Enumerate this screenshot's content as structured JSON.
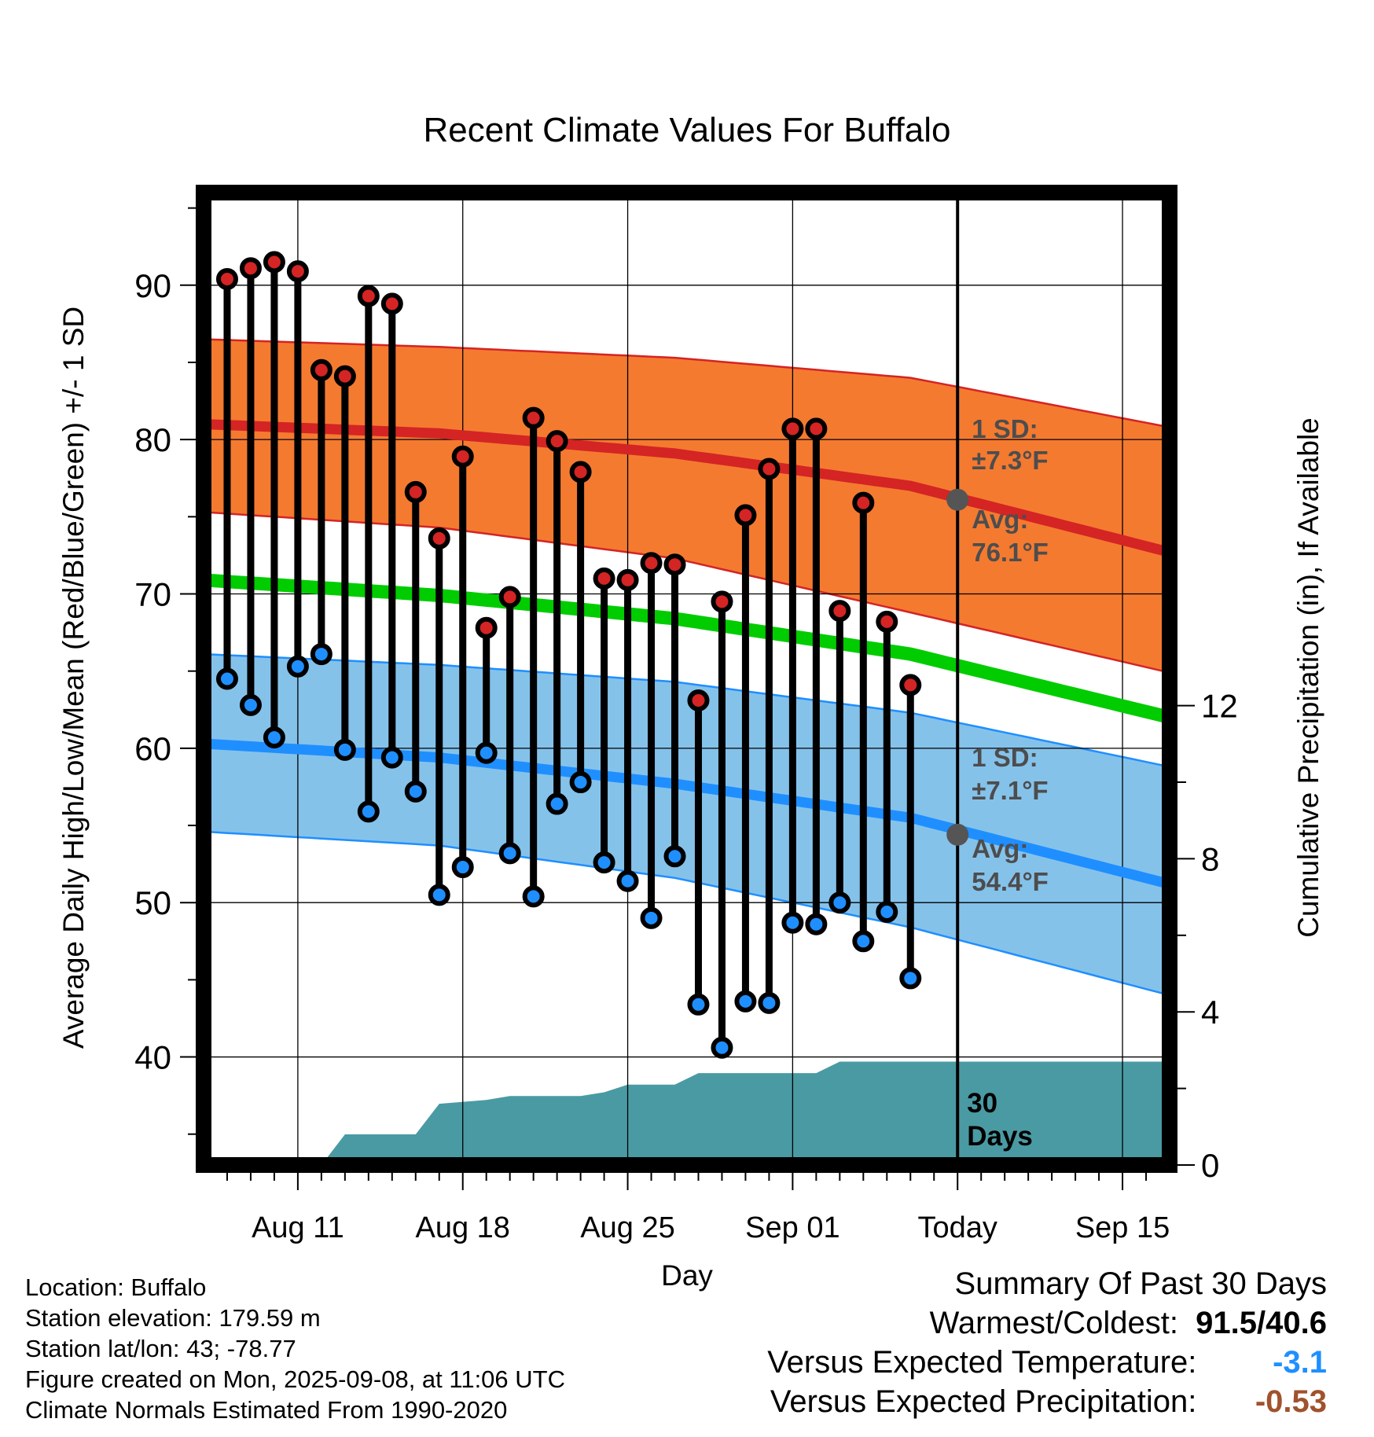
{
  "chart_data": {
    "type": "line",
    "title": "Recent Climate Values For Buffalo",
    "xlabel": "Day",
    "ylabel": "Average Daily High/Low/Mean (Red/Blue/Green) +/- 1 SD",
    "y2label": "Cumulative Precipitation (in), If Available",
    "x_tick_labels": [
      "Aug 11",
      "Aug 18",
      "Aug 25",
      "Sep 01",
      "Today",
      "Sep 15"
    ],
    "y_ticks": [
      40,
      50,
      60,
      70,
      80,
      90
    ],
    "y2_ticks": [
      0,
      4,
      8,
      12
    ],
    "ylim": [
      33,
      96
    ],
    "y2lim": [
      0,
      25.4
    ],
    "xlim": [
      "2025-08-07",
      "2025-09-17"
    ],
    "today": "2025-09-08",
    "grid": true,
    "normals": {
      "x": [
        "2025-08-07",
        "2025-08-17",
        "2025-08-27",
        "2025-09-06",
        "2025-09-17"
      ],
      "high_avg": [
        81.0,
        80.4,
        79.1,
        77.0,
        72.7
      ],
      "high_upper": [
        86.5,
        86.0,
        85.3,
        84.0,
        80.8
      ],
      "high_lower": [
        75.3,
        74.3,
        72.3,
        68.8,
        64.9
      ],
      "low_avg": [
        60.3,
        59.4,
        57.7,
        55.5,
        51.2
      ],
      "low_upper": [
        66.1,
        65.4,
        64.3,
        62.3,
        58.8
      ],
      "low_lower": [
        54.6,
        53.7,
        51.6,
        48.4,
        44.0
      ],
      "mean_avg": [
        70.9,
        69.9,
        68.4,
        66.1,
        62.0
      ]
    },
    "observed": {
      "dates": [
        "2025-08-08",
        "2025-08-09",
        "2025-08-10",
        "2025-08-11",
        "2025-08-12",
        "2025-08-13",
        "2025-08-14",
        "2025-08-15",
        "2025-08-16",
        "2025-08-17",
        "2025-08-18",
        "2025-08-19",
        "2025-08-20",
        "2025-08-21",
        "2025-08-22",
        "2025-08-23",
        "2025-08-24",
        "2025-08-25",
        "2025-08-26",
        "2025-08-27",
        "2025-08-28",
        "2025-08-29",
        "2025-08-30",
        "2025-08-31",
        "2025-09-01",
        "2025-09-02",
        "2025-09-03",
        "2025-09-04",
        "2025-09-05",
        "2025-09-06",
        "2025-09-07"
      ],
      "high": [
        90.4,
        91.1,
        91.5,
        90.9,
        84.5,
        84.1,
        89.3,
        88.8,
        76.6,
        73.6,
        78.9,
        67.8,
        69.8,
        81.4,
        79.9,
        77.9,
        71.0,
        70.9,
        72.0,
        71.9,
        63.1,
        69.5,
        75.1,
        78.1,
        80.7,
        80.7,
        68.9,
        75.9,
        68.2,
        64.1,
        null
      ],
      "low": [
        64.5,
        62.8,
        60.7,
        65.3,
        66.1,
        59.9,
        55.9,
        59.4,
        57.2,
        50.5,
        52.3,
        59.7,
        53.2,
        50.4,
        56.4,
        57.8,
        52.6,
        51.4,
        49.0,
        53.0,
        43.4,
        40.6,
        43.6,
        43.5,
        48.7,
        48.6,
        50.0,
        47.5,
        49.4,
        45.1,
        null
      ]
    },
    "precipitation": {
      "dates": [
        "2025-08-12",
        "2025-08-13",
        "2025-08-15",
        "2025-08-16",
        "2025-08-17",
        "2025-08-19",
        "2025-08-20",
        "2025-08-23",
        "2025-08-24",
        "2025-08-25",
        "2025-08-27",
        "2025-08-28",
        "2025-09-02",
        "2025-09-03",
        "2025-09-06",
        "2025-09-17"
      ],
      "cumulative": [
        0.0,
        0.8,
        0.8,
        0.8,
        1.6,
        1.7,
        1.8,
        1.8,
        1.9,
        2.1,
        2.1,
        2.4,
        2.4,
        2.7,
        2.7,
        2.7
      ]
    },
    "annotations": {
      "high_sd": "1 SD:",
      "high_sd_val": "±7.3°F",
      "high_avg_label": "Avg:",
      "high_avg_val": "76.1°F",
      "high_today": 76.1,
      "low_sd": "1 SD:",
      "low_sd_val": "±7.1°F",
      "low_avg_label": "Avg:",
      "low_avg_val": "54.4°F",
      "low_today": 54.4,
      "days_line1": "30",
      "days_line2": "Days"
    },
    "colors": {
      "high_band": "#f47a30",
      "high_line": "#d42424",
      "low_band": "#85c2ea",
      "low_line": "#1f8fff",
      "mean_line": "#00cc00",
      "precip": "#4a9aa3",
      "today_marker": "#555555",
      "annotation_text": "#4d4d4d"
    }
  },
  "footer": {
    "location": "Location: Buffalo",
    "elevation": "Station elevation: 179.59 m",
    "latlon": "Station lat/lon: 43; -78.77",
    "created": "Figure created on Mon, 2025-09-08, at 11:06 UTC",
    "normals": "Climate Normals Estimated From 1990-2020"
  },
  "summary": {
    "heading": "Summary Of Past 30 Days",
    "warm_label": "Warmest/Coldest:",
    "warm_value": "91.5/40.6",
    "temp_label": "Versus Expected Temperature:",
    "temp_value": "-3.1",
    "precip_label": "Versus Expected Precipitation:",
    "precip_value": "-0.53"
  }
}
